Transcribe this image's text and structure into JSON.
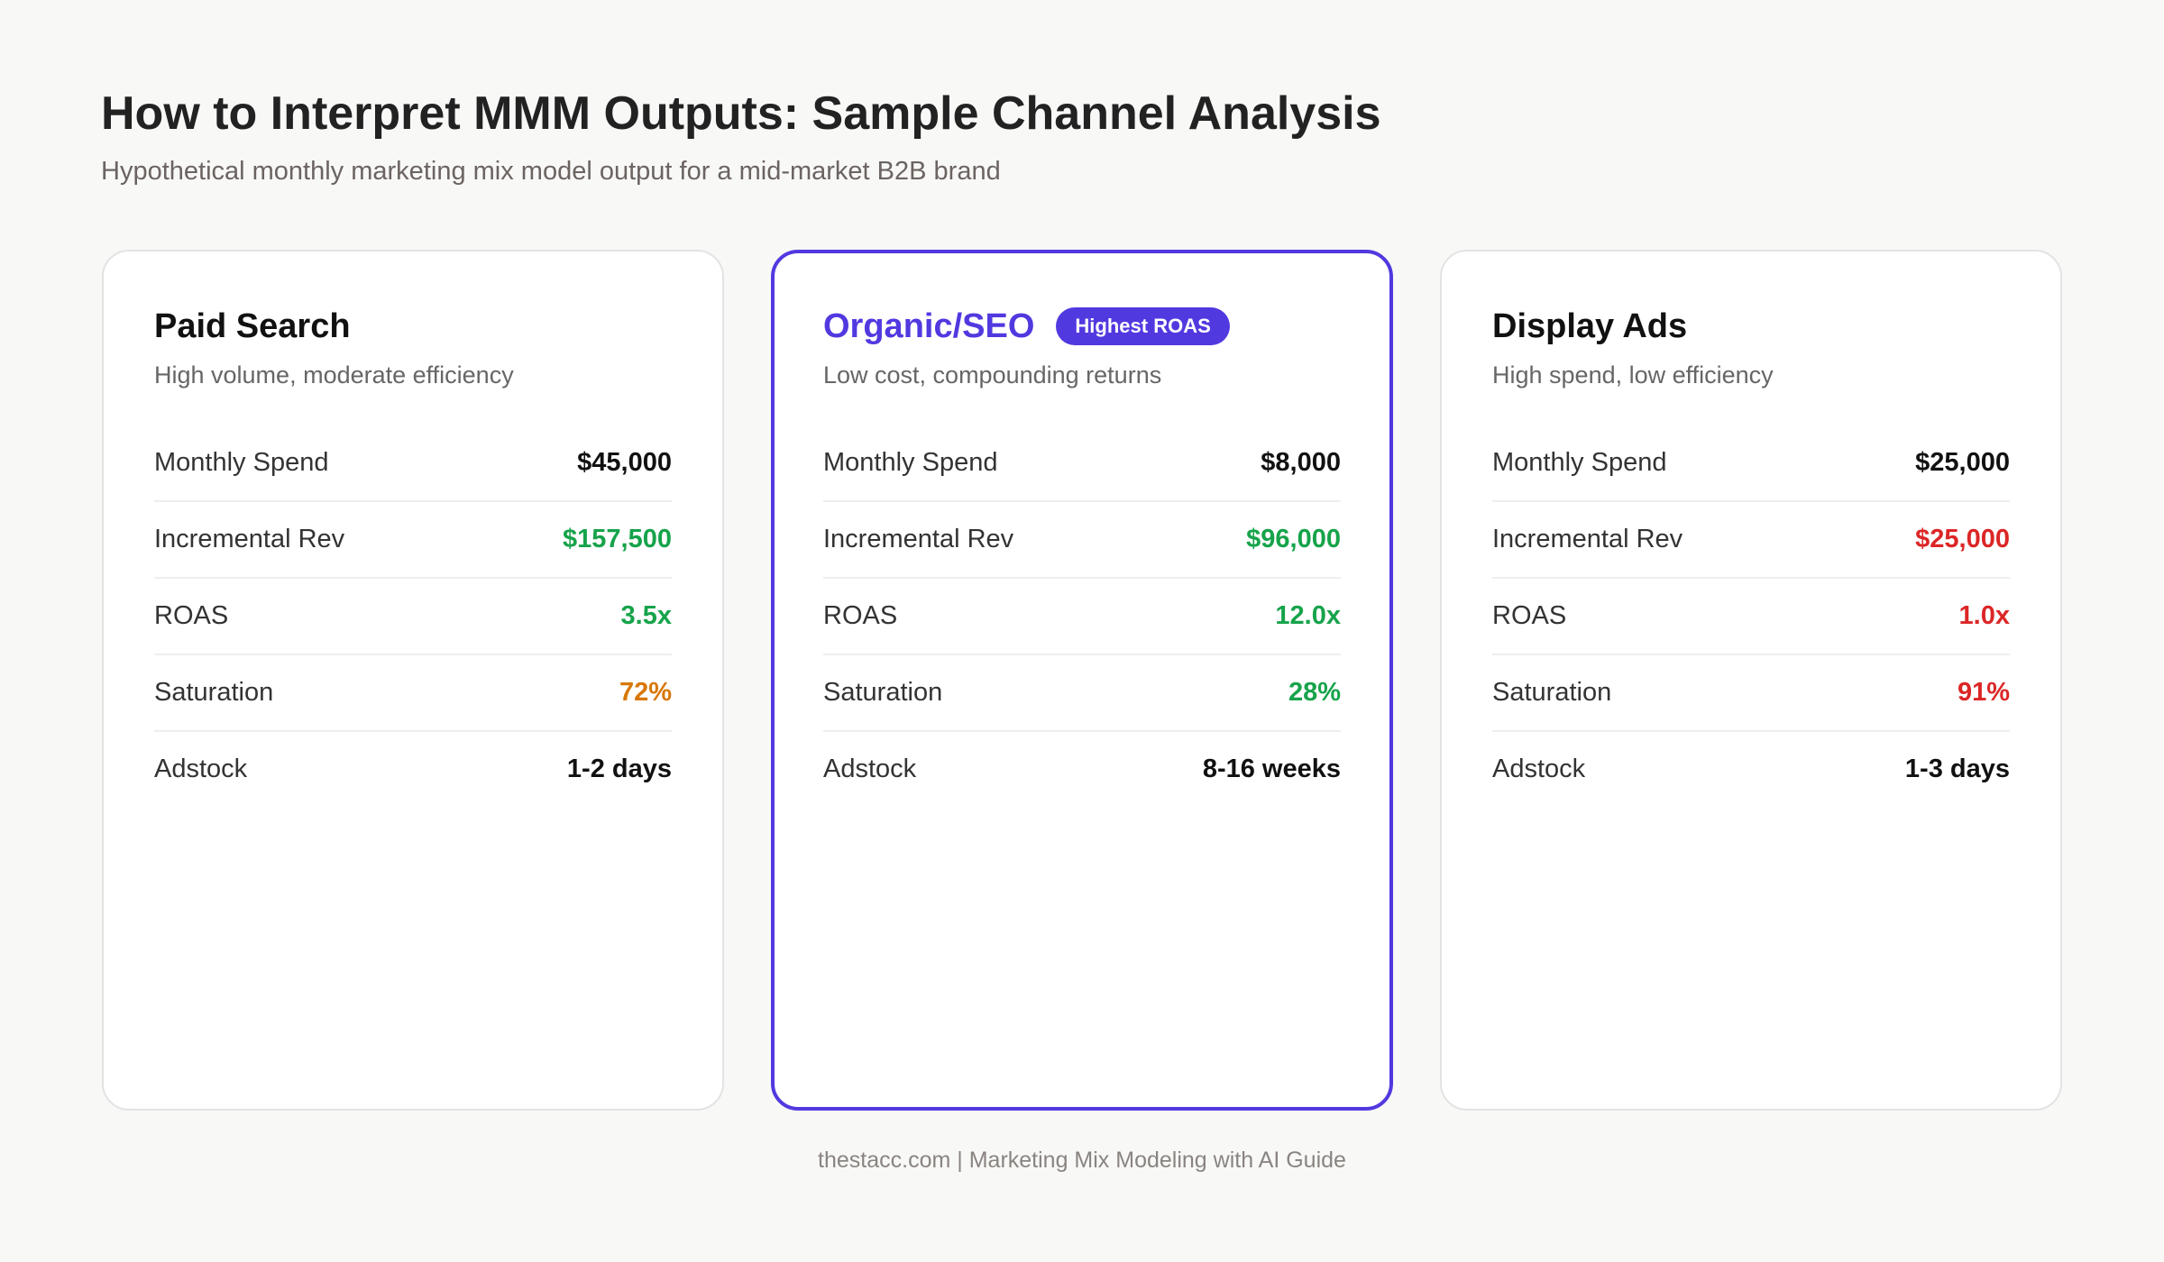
{
  "header": {
    "title": "How to Interpret MMM Outputs: Sample Channel Analysis",
    "subtitle": "Hypothetical monthly marketing mix model output for a mid-market B2B brand"
  },
  "cards": [
    {
      "title": "Paid Search",
      "subtitle": "High volume, moderate efficiency",
      "rows": [
        {
          "label": "Monthly Spend",
          "value": "$45,000",
          "color": "#111111"
        },
        {
          "label": "Incremental Rev",
          "value": "$157,500",
          "color": "#16a34a"
        },
        {
          "label": "ROAS",
          "value": "3.5x",
          "color": "#16a34a"
        },
        {
          "label": "Saturation",
          "value": "72%",
          "color": "#d97706"
        },
        {
          "label": "Adstock",
          "value": "1-2 days",
          "color": "#111111"
        }
      ]
    },
    {
      "title": "Organic/SEO",
      "badge": "Highest ROAS",
      "subtitle": "Low cost, compounding returns",
      "rows": [
        {
          "label": "Monthly Spend",
          "value": "$8,000",
          "color": "#111111"
        },
        {
          "label": "Incremental Rev",
          "value": "$96,000",
          "color": "#16a34a"
        },
        {
          "label": "ROAS",
          "value": "12.0x",
          "color": "#16a34a"
        },
        {
          "label": "Saturation",
          "value": "28%",
          "color": "#16a34a"
        },
        {
          "label": "Adstock",
          "value": "8-16 weeks",
          "color": "#111111"
        }
      ]
    },
    {
      "title": "Display Ads",
      "subtitle": "High spend, low efficiency",
      "rows": [
        {
          "label": "Monthly Spend",
          "value": "$25,000",
          "color": "#111111"
        },
        {
          "label": "Incremental Rev",
          "value": "$25,000",
          "color": "#dc2626"
        },
        {
          "label": "ROAS",
          "value": "1.0x",
          "color": "#dc2626"
        },
        {
          "label": "Saturation",
          "value": "91%",
          "color": "#dc2626"
        },
        {
          "label": "Adstock",
          "value": "1-3 days",
          "color": "#111111"
        }
      ]
    }
  ],
  "footer": "thestacc.com | Marketing Mix Modeling with AI Guide"
}
